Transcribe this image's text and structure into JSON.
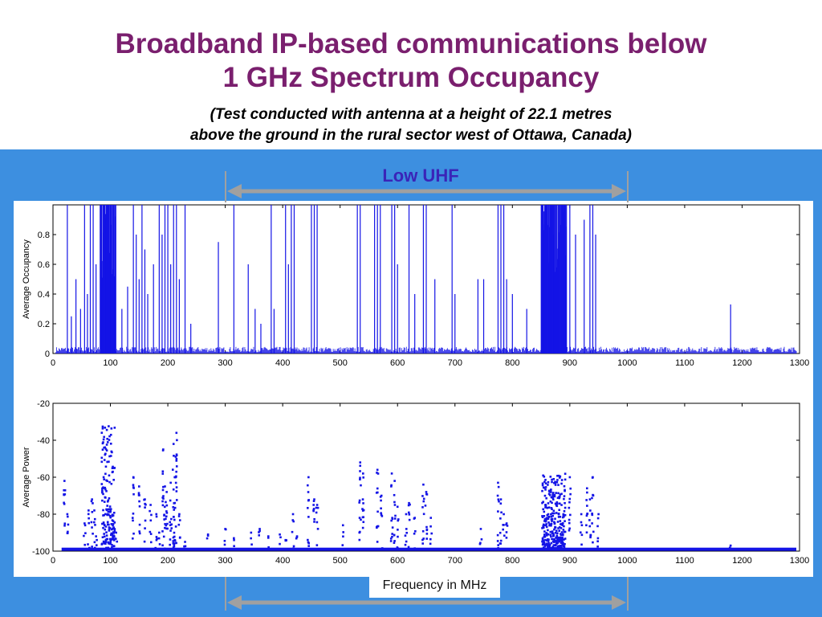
{
  "slide": {
    "title_line1": "Broadband IP-based communications below",
    "title_line2": "1 GHz Spectrum Occupancy",
    "subtitle_line1": "(Test conducted with antenna at a height of 22.1 metres",
    "subtitle_line2": "above the ground in the rural sector west of Ottawa, Canada)",
    "band_label": "Low UHF",
    "x_caption": "Frequency in MHz"
  },
  "colors": {
    "title": "#7a1f6e",
    "panel": "#3d8fe0",
    "data": "#1414e6",
    "arrow": "#a0a0a0",
    "band_label": "#3a24b8"
  },
  "band": {
    "from_mhz": 300,
    "to_mhz": 1000
  },
  "chart_data": [
    {
      "type": "bar",
      "ylabel": "Average Occupancy",
      "xlim": [
        0,
        1300
      ],
      "ylim": [
        0,
        1
      ],
      "xticks": [
        0,
        100,
        200,
        300,
        400,
        500,
        600,
        700,
        800,
        900,
        1000,
        1100,
        1200,
        1300
      ],
      "yticks": [
        0,
        0.2,
        0.4,
        0.6,
        0.8,
        1
      ],
      "ytick_labels": [
        "0",
        "0.2",
        "0.4",
        "0.6",
        "0.8",
        ""
      ],
      "grid": false,
      "noise_floor": 0.03,
      "clusters": [
        {
          "from": 82,
          "to": 110,
          "occupancy": 1.0
        },
        {
          "from": 850,
          "to": 895,
          "occupancy": 1.0
        }
      ],
      "peaks": [
        [
          25,
          1.0
        ],
        [
          32,
          0.25
        ],
        [
          40,
          0.5
        ],
        [
          48,
          0.3
        ],
        [
          55,
          1.0
        ],
        [
          60,
          0.4
        ],
        [
          65,
          1.0
        ],
        [
          70,
          1.0
        ],
        [
          75,
          0.6
        ],
        [
          120,
          0.3
        ],
        [
          130,
          0.45
        ],
        [
          140,
          1.0
        ],
        [
          145,
          0.8
        ],
        [
          150,
          0.5
        ],
        [
          155,
          1.0
        ],
        [
          160,
          0.7
        ],
        [
          165,
          0.4
        ],
        [
          175,
          0.6
        ],
        [
          185,
          1.0
        ],
        [
          190,
          0.8
        ],
        [
          195,
          1.0
        ],
        [
          200,
          1.0
        ],
        [
          205,
          0.6
        ],
        [
          210,
          1.0
        ],
        [
          215,
          1.0
        ],
        [
          220,
          0.5
        ],
        [
          230,
          1.0
        ],
        [
          240,
          0.2
        ],
        [
          288,
          0.75
        ],
        [
          315,
          1.0
        ],
        [
          340,
          0.6
        ],
        [
          352,
          0.3
        ],
        [
          362,
          0.2
        ],
        [
          380,
          1.0
        ],
        [
          385,
          0.3
        ],
        [
          405,
          1.0
        ],
        [
          410,
          0.6
        ],
        [
          415,
          1.0
        ],
        [
          420,
          1.0
        ],
        [
          450,
          1.0
        ],
        [
          455,
          1.0
        ],
        [
          460,
          1.0
        ],
        [
          530,
          1.0
        ],
        [
          535,
          1.0
        ],
        [
          560,
          1.0
        ],
        [
          565,
          1.0
        ],
        [
          570,
          1.0
        ],
        [
          590,
          1.0
        ],
        [
          595,
          1.0
        ],
        [
          600,
          0.6
        ],
        [
          620,
          1.0
        ],
        [
          630,
          0.4
        ],
        [
          645,
          1.0
        ],
        [
          650,
          1.0
        ],
        [
          665,
          0.5
        ],
        [
          695,
          1.0
        ],
        [
          700,
          0.4
        ],
        [
          740,
          0.5
        ],
        [
          750,
          0.5
        ],
        [
          775,
          1.0
        ],
        [
          780,
          1.0
        ],
        [
          785,
          1.0
        ],
        [
          790,
          0.5
        ],
        [
          800,
          0.4
        ],
        [
          825,
          0.3
        ],
        [
          900,
          1.0
        ],
        [
          910,
          0.8
        ],
        [
          925,
          0.9
        ],
        [
          935,
          1.0
        ],
        [
          940,
          1.0
        ],
        [
          945,
          0.8
        ],
        [
          1180,
          0.33
        ]
      ]
    },
    {
      "type": "scatter",
      "xlabel": "Frequency in MHz",
      "ylabel": "Average Power",
      "xlim": [
        0,
        1300
      ],
      "ylim": [
        -100,
        -20
      ],
      "xticks": [
        0,
        100,
        200,
        300,
        400,
        500,
        600,
        700,
        800,
        900,
        1000,
        1100,
        1200,
        1300
      ],
      "yticks": [
        -100,
        -80,
        -60,
        -40,
        -20
      ],
      "grid": false,
      "baseline": -99,
      "clusters": [
        {
          "from": 85,
          "to": 108,
          "top": -32
        },
        {
          "from": 852,
          "to": 892,
          "top": -58
        }
      ],
      "peaks": [
        [
          20,
          -62
        ],
        [
          25,
          -80
        ],
        [
          55,
          -85
        ],
        [
          62,
          -78
        ],
        [
          68,
          -72
        ],
        [
          72,
          -78
        ],
        [
          75,
          -92
        ],
        [
          110,
          -90
        ],
        [
          140,
          -60
        ],
        [
          150,
          -65
        ],
        [
          160,
          -72
        ],
        [
          170,
          -75
        ],
        [
          180,
          -80
        ],
        [
          185,
          -90
        ],
        [
          192,
          -45
        ],
        [
          195,
          -65
        ],
        [
          198,
          -68
        ],
        [
          205,
          -63
        ],
        [
          210,
          -42
        ],
        [
          212,
          -60
        ],
        [
          215,
          -36
        ],
        [
          220,
          -80
        ],
        [
          230,
          -95
        ],
        [
          270,
          -91
        ],
        [
          300,
          -88
        ],
        [
          315,
          -93
        ],
        [
          345,
          -90
        ],
        [
          360,
          -88
        ],
        [
          375,
          -92
        ],
        [
          395,
          -91
        ],
        [
          405,
          -94
        ],
        [
          418,
          -80
        ],
        [
          425,
          -92
        ],
        [
          445,
          -60
        ],
        [
          455,
          -72
        ],
        [
          460,
          -75
        ],
        [
          505,
          -86
        ],
        [
          535,
          -52
        ],
        [
          540,
          -58
        ],
        [
          565,
          -56
        ],
        [
          572,
          -70
        ],
        [
          590,
          -58
        ],
        [
          595,
          -62
        ],
        [
          600,
          -76
        ],
        [
          615,
          -80
        ],
        [
          620,
          -74
        ],
        [
          630,
          -82
        ],
        [
          645,
          -64
        ],
        [
          650,
          -68
        ],
        [
          658,
          -82
        ],
        [
          745,
          -88
        ],
        [
          775,
          -63
        ],
        [
          780,
          -72
        ],
        [
          785,
          -80
        ],
        [
          790,
          -85
        ],
        [
          900,
          -60
        ],
        [
          920,
          -80
        ],
        [
          930,
          -66
        ],
        [
          935,
          -72
        ],
        [
          940,
          -60
        ],
        [
          950,
          -80
        ],
        [
          1180,
          -97
        ]
      ]
    }
  ]
}
